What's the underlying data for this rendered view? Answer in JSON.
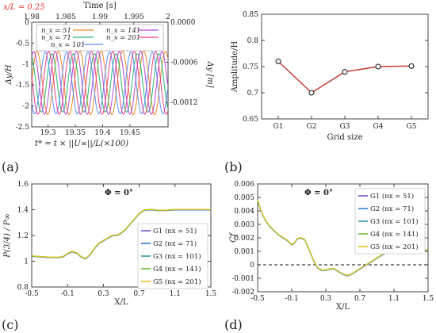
{
  "figure": {
    "panel_labels": [
      "(a)",
      "(b)",
      "(c)",
      "(d)"
    ]
  },
  "chart_data": [
    {
      "panel": "a",
      "type": "line",
      "annotation": "x/L = 0.25",
      "top_xlabel": "Time [s]",
      "top_xticks": [
        "1.98",
        "1.985",
        "1.99",
        "1.995",
        "2"
      ],
      "xlabel": "t* = t × ||U∞||/L(×100)",
      "xticks": [
        "19.3",
        "19.35",
        "19.4",
        "19.45"
      ],
      "xlim": [
        19.27,
        19.52
      ],
      "ylabel": "Δy/H",
      "yticks": [
        "0",
        "-0.5",
        "-1",
        "-1.5",
        "-2",
        "-2.5"
      ],
      "ylim": [
        -2.5,
        0
      ],
      "right_ylabel": "Δy [m]",
      "right_yticks": [
        "0.0000",
        "-0.0006",
        "-0.0012"
      ],
      "right_ylim": [
        -0.00157,
        0
      ],
      "legend": [
        "n_x = 51",
        "n_x = 71",
        "n_x = 101",
        "n_x = 141",
        "n_x = 201"
      ],
      "colors": [
        "#f08a2e",
        "#2bb673",
        "#5b8ff9",
        "#b84ad8",
        "#e8428c"
      ],
      "signal": {
        "mean": -1.45,
        "amplitudes": [
          0.76,
          0.7,
          0.74,
          0.75,
          0.751
        ],
        "period": 0.0392,
        "phases": [
          0.0,
          0.012,
          0.024,
          0.006,
          0.018
        ]
      }
    },
    {
      "panel": "b",
      "type": "line",
      "xlabel": "Grid size",
      "ylabel": "Amplitude/H",
      "categories": [
        "G1",
        "G2",
        "G3",
        "G4",
        "G5"
      ],
      "values": [
        0.76,
        0.7,
        0.74,
        0.75,
        0.751
      ],
      "ylim": [
        0.65,
        0.85
      ],
      "yticks": [
        "0.65",
        "0.7",
        "0.75",
        "0.8",
        "0.85"
      ],
      "line_color": "#c0392b"
    },
    {
      "panel": "c",
      "type": "line",
      "annotation": "Φ = 0°",
      "xlabel": "X/L",
      "ylabel": "P(3/4) / P∞",
      "xlim": [
        -0.5,
        1.5
      ],
      "xticks": [
        "-0.5",
        "-0.1",
        "0.3",
        "0.7",
        "1.1",
        "1.5"
      ],
      "ylim": [
        0.8,
        1.6
      ],
      "yticks": [
        "0.8",
        "1",
        "1.2",
        "1.4",
        "1.6"
      ],
      "legend": [
        "G1 (nx = 51)",
        "G2 (nx = 71)",
        "G3 (nx = 101)",
        "G4 (nx = 141)",
        "G5 (nx = 201)"
      ],
      "colors": [
        "#7d4fc7",
        "#2f7fd4",
        "#2f9fa5",
        "#6fbf3a",
        "#d9c21f"
      ],
      "x": [
        -0.5,
        -0.4,
        -0.3,
        -0.2,
        -0.15,
        -0.1,
        -0.05,
        0.0,
        0.05,
        0.1,
        0.15,
        0.2,
        0.25,
        0.3,
        0.35,
        0.4,
        0.45,
        0.5,
        0.55,
        0.6,
        0.65,
        0.7,
        0.75,
        0.8,
        0.85,
        0.9,
        0.95,
        1.0,
        1.1,
        1.2,
        1.3,
        1.4,
        1.5
      ],
      "y": [
        1.04,
        1.035,
        1.03,
        1.03,
        1.035,
        1.06,
        1.075,
        1.065,
        1.035,
        1.02,
        1.05,
        1.1,
        1.14,
        1.16,
        1.18,
        1.2,
        1.2,
        1.22,
        1.25,
        1.29,
        1.33,
        1.37,
        1.395,
        1.4,
        1.4,
        1.395,
        1.395,
        1.395,
        1.4,
        1.4,
        1.4,
        1.4,
        1.4
      ]
    },
    {
      "panel": "d",
      "type": "line",
      "annotation": "Φ = 0°",
      "xlabel": "X/L",
      "ylabel": "Cf",
      "xlim": [
        -0.5,
        1.5
      ],
      "xticks": [
        "-0.5",
        "-0.1",
        "0.3",
        "0.7",
        "1.1",
        "1.5"
      ],
      "ylim": [
        -0.002,
        0.006
      ],
      "yticks": [
        "0.006",
        "0.005",
        "0.004",
        "0.003",
        "0.002",
        "0.001",
        "0",
        "-0.001",
        "-0.002"
      ],
      "zero_line": 0,
      "legend": [
        "G1 (nx = 51)",
        "G2 (nx = 71)",
        "G3 (nx = 101)",
        "G4 (nx = 141)",
        "G5 (nx = 201)"
      ],
      "colors": [
        "#7d4fc7",
        "#2f7fd4",
        "#2f9fa5",
        "#6fbf3a",
        "#d9c21f"
      ],
      "x": [
        -0.5,
        -0.47,
        -0.44,
        -0.4,
        -0.35,
        -0.3,
        -0.25,
        -0.2,
        -0.15,
        -0.1,
        -0.07,
        -0.04,
        0.0,
        0.05,
        0.1,
        0.15,
        0.2,
        0.25,
        0.3,
        0.35,
        0.4,
        0.45,
        0.5,
        0.55,
        0.6,
        0.65,
        0.7,
        0.75,
        0.8,
        0.9,
        1.0,
        1.1,
        1.2,
        1.3,
        1.4,
        1.5
      ],
      "y": [
        0.0048,
        0.0042,
        0.0037,
        0.0032,
        0.0028,
        0.0025,
        0.0022,
        0.002,
        0.0018,
        0.0015,
        0.0016,
        0.0019,
        0.002,
        0.0019,
        0.0012,
        0.0004,
        -0.0002,
        -0.0004,
        -0.0004,
        -0.0003,
        -0.0003,
        -0.0005,
        -0.0007,
        -0.0008,
        -0.0007,
        -0.0005,
        -0.0003,
        -0.0001,
        0.0001,
        0.0005,
        0.0009,
        0.00095,
        0.001,
        0.001,
        0.0011,
        0.0011
      ]
    }
  ]
}
